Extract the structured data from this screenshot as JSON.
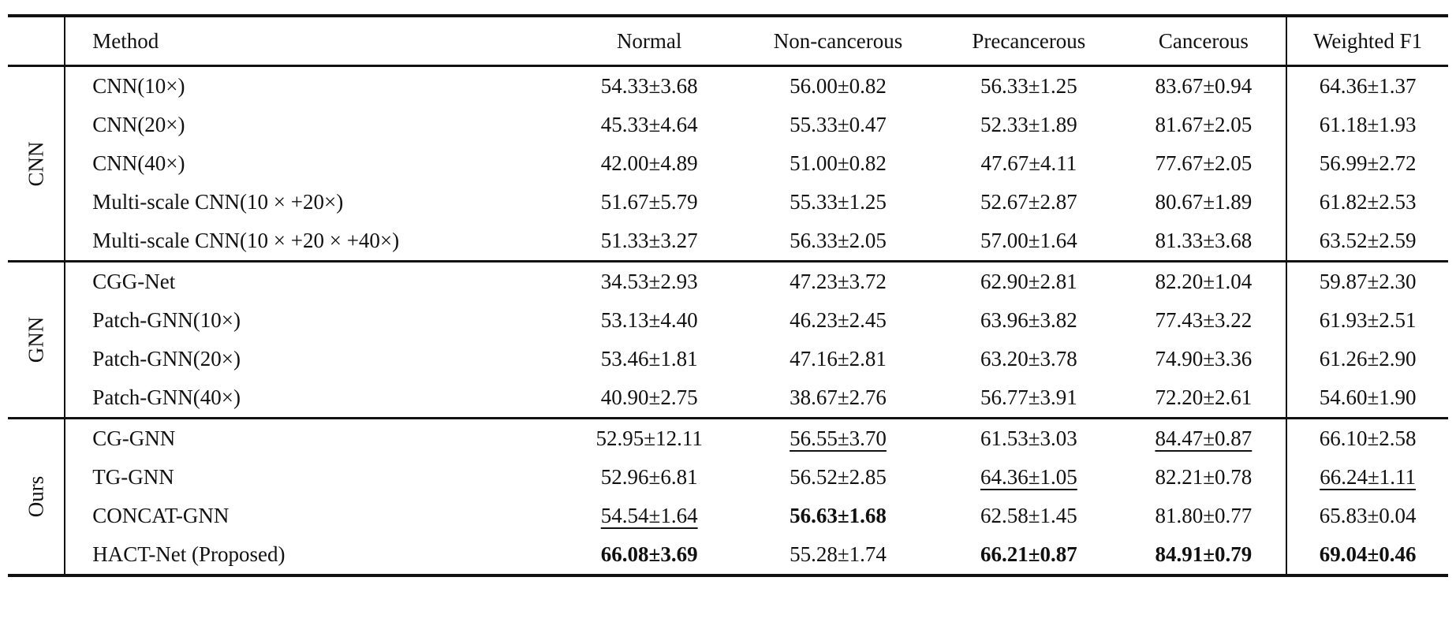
{
  "header": {
    "method": "Method",
    "cols": [
      "Normal",
      "Non-cancerous",
      "Precancerous",
      "Cancerous",
      "Weighted F1"
    ]
  },
  "groups": [
    {
      "name": "CNN",
      "rows": [
        {
          "method": "CNN(10×)",
          "vals": [
            "54.33±3.68",
            "56.00±0.82",
            "56.33±1.25",
            "83.67±0.94",
            "64.36±1.37"
          ]
        },
        {
          "method": "CNN(20×)",
          "vals": [
            "45.33±4.64",
            "55.33±0.47",
            "52.33±1.89",
            "81.67±2.05",
            "61.18±1.93"
          ]
        },
        {
          "method": "CNN(40×)",
          "vals": [
            "42.00±4.89",
            "51.00±0.82",
            "47.67±4.11",
            "77.67±2.05",
            "56.99±2.72"
          ]
        },
        {
          "method": "Multi-scale CNN(10 × +20×)",
          "vals": [
            "51.67±5.79",
            "55.33±1.25",
            "52.67±2.87",
            "80.67±1.89",
            "61.82±2.53"
          ]
        },
        {
          "method": "Multi-scale CNN(10 × +20 × +40×)",
          "vals": [
            "51.33±3.27",
            "56.33±2.05",
            "57.00±1.64",
            "81.33±3.68",
            "63.52±2.59"
          ]
        }
      ]
    },
    {
      "name": "GNN",
      "rows": [
        {
          "method": "CGG-Net",
          "vals": [
            "34.53±2.93",
            "47.23±3.72",
            "62.90±2.81",
            "82.20±1.04",
            "59.87±2.30"
          ]
        },
        {
          "method": "Patch-GNN(10×)",
          "vals": [
            "53.13±4.40",
            "46.23±2.45",
            "63.96±3.82",
            "77.43±3.22",
            "61.93±2.51"
          ]
        },
        {
          "method": "Patch-GNN(20×)",
          "vals": [
            "53.46±1.81",
            "47.16±2.81",
            "63.20±3.78",
            "74.90±3.36",
            "61.26±2.90"
          ]
        },
        {
          "method": "Patch-GNN(40×)",
          "vals": [
            "40.90±2.75",
            "38.67±2.76",
            "56.77±3.91",
            "72.20±2.61",
            "54.60±1.90"
          ]
        }
      ]
    },
    {
      "name": "Ours",
      "rows": [
        {
          "method": "CG-GNN",
          "vals": [
            "52.95±12.11",
            "56.55±3.70",
            "61.53±3.03",
            "84.47±0.87",
            "66.10±2.58"
          ]
        },
        {
          "method": "TG-GNN",
          "vals": [
            "52.96±6.81",
            "56.52±2.85",
            "64.36±1.05",
            "82.21±0.78",
            "66.24±1.11"
          ]
        },
        {
          "method": "CONCAT-GNN",
          "vals": [
            "54.54±1.64",
            "56.63±1.68",
            "62.58±1.45",
            "81.80±0.77",
            "65.83±0.04"
          ]
        },
        {
          "method": "HACT-Net (Proposed)",
          "vals": [
            "66.08±3.69",
            "55.28±1.74",
            "66.21±0.87",
            "84.91±0.79",
            "69.04±0.46"
          ]
        }
      ]
    }
  ],
  "formatting": {
    "bold": [
      [
        2,
        3,
        0
      ],
      [
        2,
        2,
        1
      ],
      [
        2,
        3,
        2
      ],
      [
        2,
        3,
        3
      ],
      [
        2,
        3,
        4
      ]
    ],
    "underline": [
      [
        2,
        2,
        0
      ],
      [
        2,
        0,
        1
      ],
      [
        2,
        1,
        2
      ],
      [
        2,
        0,
        3
      ],
      [
        2,
        1,
        4
      ]
    ]
  }
}
